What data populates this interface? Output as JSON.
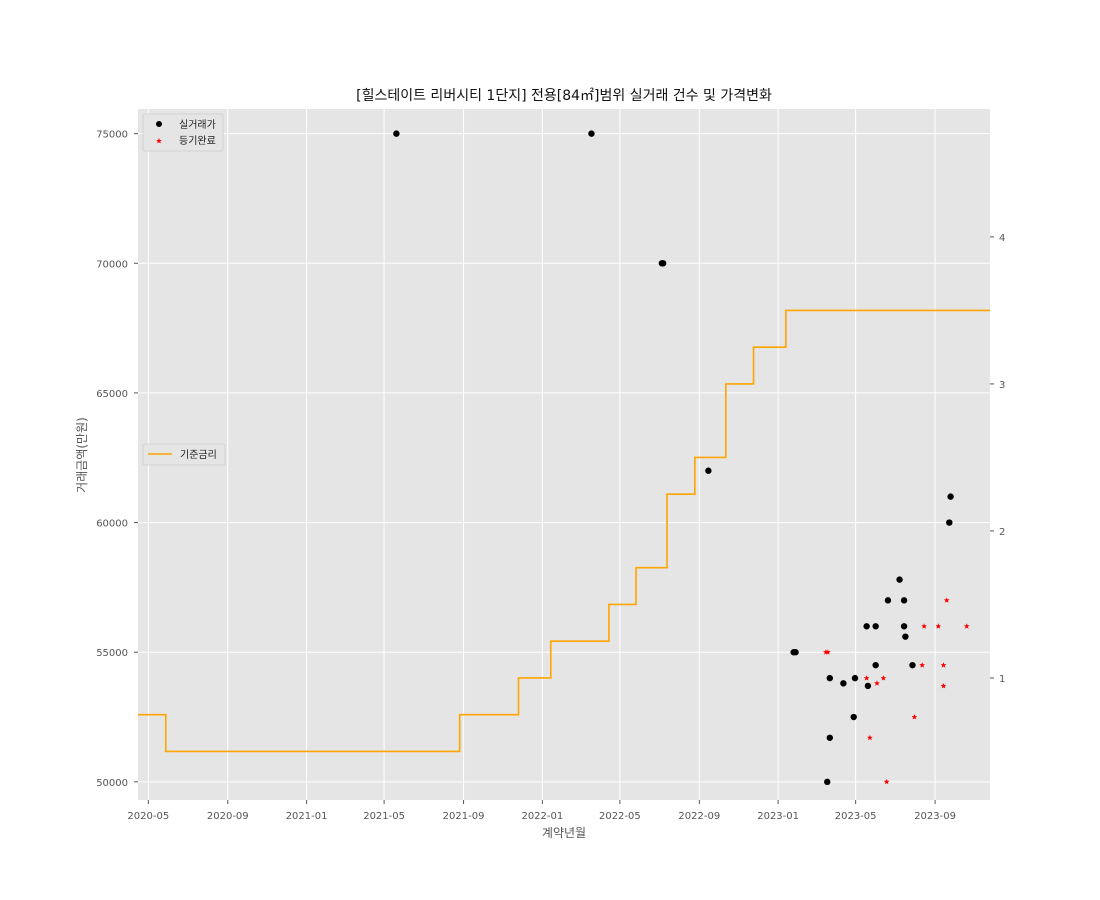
{
  "chart_data": {
    "type": "scatter",
    "title": "[힐스테이트 리버시티 1단지] 전용[84㎡]범위 실거래 건수 및 가격변화",
    "xlabel": "계약년월",
    "ylabel": "거래금액(만원)",
    "x_range": [
      "2020-04-15",
      "2023-11-25"
    ],
    "ylim": [
      49300,
      75950
    ],
    "y2lim": [
      0.17,
      4.87
    ],
    "grid": true,
    "x_ticks": [
      "2020-05",
      "2020-09",
      "2021-01",
      "2021-05",
      "2021-09",
      "2022-01",
      "2022-05",
      "2022-09",
      "2023-01",
      "2023-05",
      "2023-09"
    ],
    "y_ticks": [
      50000,
      55000,
      60000,
      65000,
      70000,
      75000
    ],
    "y2_ticks": [
      1,
      2,
      3,
      4
    ],
    "legend_top": {
      "placement": "upper-left",
      "entries": [
        {
          "label": "실거래가",
          "marker": "circle",
          "color": "#000000"
        },
        {
          "label": "등기완료",
          "marker": "star",
          "color": "#ff0000"
        }
      ]
    },
    "legend_mid": {
      "placement": "center-left",
      "entries": [
        {
          "label": "기준금리",
          "marker": "line",
          "color": "#ffa500"
        }
      ]
    },
    "series": [
      {
        "name": "실거래가",
        "kind": "scatter",
        "color": "#000000",
        "points": [
          [
            "2021-05-20",
            75000
          ],
          [
            "2022-03-18",
            75000
          ],
          [
            "2022-07-05",
            70000
          ],
          [
            "2022-07-07",
            70000
          ],
          [
            "2022-09-15",
            62000
          ],
          [
            "2023-01-25",
            55000
          ],
          [
            "2023-01-28",
            55000
          ],
          [
            "2023-03-18",
            50000
          ],
          [
            "2023-03-22",
            51700
          ],
          [
            "2023-03-22",
            54000
          ],
          [
            "2023-04-12",
            53800
          ],
          [
            "2023-04-28",
            52500
          ],
          [
            "2023-04-30",
            54000
          ],
          [
            "2023-05-18",
            56000
          ],
          [
            "2023-05-20",
            53700
          ],
          [
            "2023-06-01",
            56000
          ],
          [
            "2023-06-01",
            54500
          ],
          [
            "2023-06-20",
            57000
          ],
          [
            "2023-07-08",
            57800
          ],
          [
            "2023-07-15",
            57000
          ],
          [
            "2023-07-15",
            56000
          ],
          [
            "2023-07-17",
            55600
          ],
          [
            "2023-07-28",
            54500
          ],
          [
            "2023-09-23",
            60000
          ],
          [
            "2023-09-25",
            61000
          ]
        ]
      },
      {
        "name": "등기완료",
        "kind": "scatter",
        "color": "#ff0000",
        "points": [
          [
            "2023-03-16",
            55000
          ],
          [
            "2023-03-19",
            55000
          ],
          [
            "2023-05-18",
            54000
          ],
          [
            "2023-05-23",
            51700
          ],
          [
            "2023-06-03",
            53800
          ],
          [
            "2023-06-13",
            54000
          ],
          [
            "2023-06-18",
            50000
          ],
          [
            "2023-07-31",
            52500
          ],
          [
            "2023-08-12",
            54500
          ],
          [
            "2023-08-15",
            56000
          ],
          [
            "2023-09-06",
            56000
          ],
          [
            "2023-09-14",
            54500
          ],
          [
            "2023-09-14",
            53700
          ],
          [
            "2023-09-19",
            57000
          ],
          [
            "2023-10-20",
            56000
          ]
        ]
      },
      {
        "name": "기준금리",
        "kind": "step",
        "axis": "right",
        "color": "#ffa500",
        "steps": [
          [
            "2020-04-15",
            0.75
          ],
          [
            "2020-05-28",
            0.5
          ],
          [
            "2021-08-26",
            0.75
          ],
          [
            "2021-11-25",
            1.0
          ],
          [
            "2022-01-14",
            1.25
          ],
          [
            "2022-04-14",
            1.5
          ],
          [
            "2022-05-26",
            1.75
          ],
          [
            "2022-07-13",
            2.25
          ],
          [
            "2022-08-25",
            2.5
          ],
          [
            "2022-10-12",
            3.0
          ],
          [
            "2022-11-24",
            3.25
          ],
          [
            "2023-01-13",
            3.5
          ],
          [
            "2023-11-25",
            3.5
          ]
        ]
      }
    ]
  }
}
